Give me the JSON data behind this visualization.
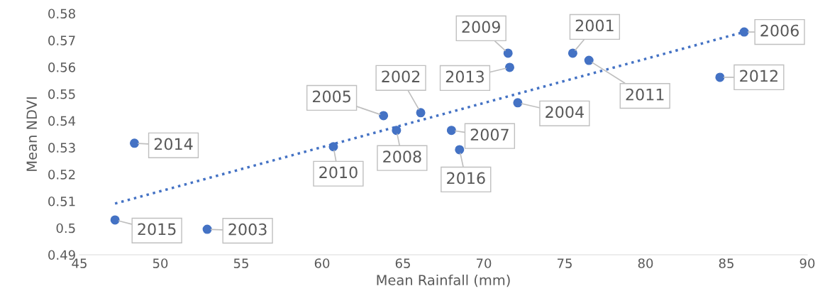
{
  "chart_data": {
    "type": "scatter",
    "xlabel": "Mean Rainfall (mm)",
    "ylabel": "Mean NDVI",
    "xlim": [
      45,
      90
    ],
    "xticks": [
      45,
      50,
      55,
      60,
      65,
      70,
      75,
      80,
      85,
      90
    ],
    "ylim": [
      0.49,
      0.58
    ],
    "yticks": [
      0.49,
      0.5,
      0.51,
      0.52,
      0.53,
      0.54,
      0.55,
      0.56,
      0.57,
      0.58
    ],
    "grid": false,
    "legend": false,
    "series": [
      {
        "color": "#4472c4",
        "marker": "circle",
        "x": [
          86.1,
          71.5,
          75.5,
          76.5,
          71.6,
          84.6,
          72.1,
          66.1,
          63.8,
          48.4,
          64.6,
          68.0,
          60.7,
          68.5,
          47.2,
          52.9
        ],
        "values": [
          0.5731,
          0.5652,
          0.5652,
          0.5625,
          0.5599,
          0.5562,
          0.5467,
          0.543,
          0.5419,
          0.5316,
          0.5364,
          0.5364,
          0.5303,
          0.5292,
          0.503,
          0.4995
        ]
      },
      {
        "type": "line",
        "color": "#4472c4",
        "line_style": "dotted",
        "x": [
          47.2,
          86.1
        ],
        "values": [
          0.5091,
          0.5731
        ]
      }
    ],
    "annotations": [
      {
        "text": "2006",
        "x": 86.1,
        "y": 0.5731
      },
      {
        "text": "2009",
        "x": 71.5,
        "y": 0.5652
      },
      {
        "text": "2001",
        "x": 75.5,
        "y": 0.5652
      },
      {
        "text": "2011",
        "x": 76.5,
        "y": 0.5625
      },
      {
        "text": "2013",
        "x": 71.6,
        "y": 0.5599
      },
      {
        "text": "2012",
        "x": 84.6,
        "y": 0.5562
      },
      {
        "text": "2004",
        "x": 72.1,
        "y": 0.5467
      },
      {
        "text": "2002",
        "x": 66.1,
        "y": 0.543
      },
      {
        "text": "2005",
        "x": 63.8,
        "y": 0.5419
      },
      {
        "text": "2014",
        "x": 48.4,
        "y": 0.5316
      },
      {
        "text": "2008",
        "x": 64.6,
        "y": 0.5364
      },
      {
        "text": "2007",
        "x": 68.0,
        "y": 0.5364
      },
      {
        "text": "2010",
        "x": 60.7,
        "y": 0.5303
      },
      {
        "text": "2016",
        "x": 68.5,
        "y": 0.5292
      },
      {
        "text": "2015",
        "x": 47.2,
        "y": 0.503
      },
      {
        "text": "2003",
        "x": 52.9,
        "y": 0.4995
      }
    ]
  }
}
